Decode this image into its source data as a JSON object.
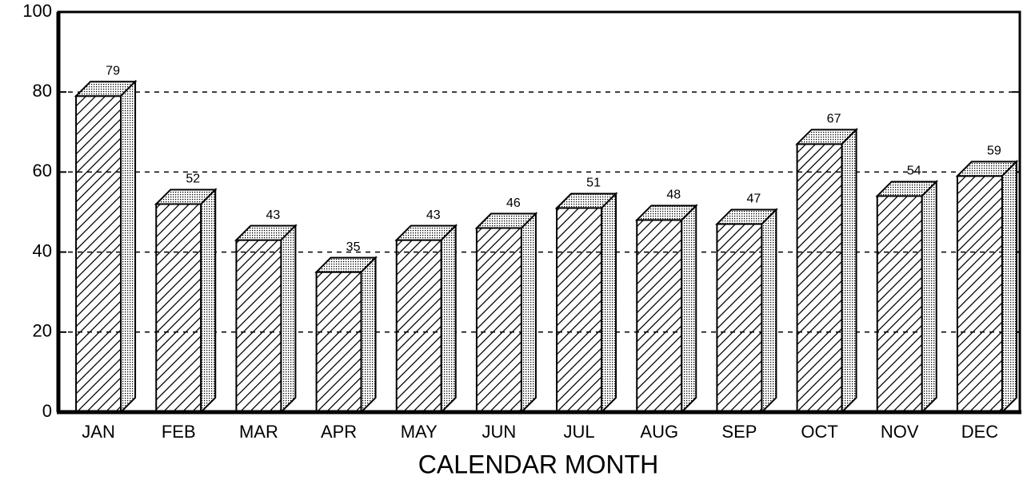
{
  "chart_data": {
    "type": "bar3d",
    "categories": [
      "JAN",
      "FEB",
      "MAR",
      "APR",
      "MAY",
      "JUN",
      "JUL",
      "AUG",
      "SEP",
      "OCT",
      "NOV",
      "DEC"
    ],
    "values": [
      79,
      52,
      43,
      35,
      43,
      46,
      51,
      48,
      47,
      67,
      54,
      59
    ],
    "x_label": "CALENDAR MONTH",
    "ylim": [
      0,
      100
    ],
    "yticks": [
      0,
      20,
      40,
      60,
      80,
      100
    ],
    "grid": true,
    "color": "#000000"
  }
}
